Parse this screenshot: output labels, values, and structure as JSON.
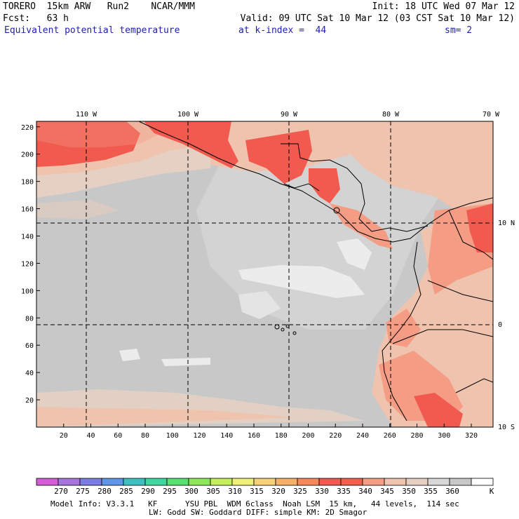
{
  "header": {
    "line1_left": "TORERO  15km ARW   Run2    NCAR/MMM",
    "line1_right": "Init: 18 UTC Wed 07 Mar 12",
    "line2_left": "Fcst:   63 h",
    "line2_right": "Valid: 09 UTC Sat 10 Mar 12 (03 CST Sat 10 Mar 12)",
    "line3_field": "Equivalent potential temperature",
    "line3_level": "at k-index =  44",
    "line3_smooth": "sm= 2"
  },
  "map": {
    "top_lon_labels": [
      "110 W",
      "100 W",
      "90 W",
      "80 W",
      "70 W"
    ],
    "right_lat_labels": [
      "10 N",
      "0",
      "10 S"
    ],
    "y_grid_labels": [
      "220",
      "200",
      "180",
      "160",
      "140",
      "120",
      "100",
      "80",
      "60",
      "40",
      "20"
    ],
    "x_grid_labels": [
      "20",
      "40",
      "60",
      "80",
      "100",
      "120",
      "140",
      "160",
      "180",
      "200",
      "220",
      "240",
      "260",
      "280",
      "300",
      "320"
    ],
    "field_colors": {
      "gray_bg": "#c8c8c8",
      "light_gray": "#d8d8d8",
      "white_patch": "#ececec",
      "tan": "#efc3ad",
      "salmon": "#f49c84",
      "red": "#f15a4f"
    }
  },
  "colorbar": {
    "colors": [
      "#d25dd4",
      "#a776dc",
      "#7c7ce4",
      "#5e95e6",
      "#3fc0c0",
      "#3fd6a0",
      "#58e070",
      "#8ce858",
      "#c4ee5a",
      "#eef07a",
      "#f5d27a",
      "#f5b06a",
      "#f6885c",
      "#f15a4f",
      "#f25f4a",
      "#f49c84",
      "#efc3ad",
      "#e6d0c4",
      "#d8d8d8",
      "#c8c8c8",
      "#ffffff"
    ],
    "labels": [
      "270",
      "275",
      "280",
      "285",
      "290",
      "295",
      "300",
      "305",
      "310",
      "315",
      "320",
      "325",
      "330",
      "335",
      "340",
      "345",
      "350",
      "355",
      "360"
    ],
    "unit": "K"
  },
  "footer": {
    "line1": "Model Info: V3.3.1   KF      YSU PBL  WDM 6class  Noah LSM  15 km,   44 levels,  114 sec",
    "line2": "LW: Godd SW: Goddard DIFF: simple KM: 2D Smagor"
  }
}
